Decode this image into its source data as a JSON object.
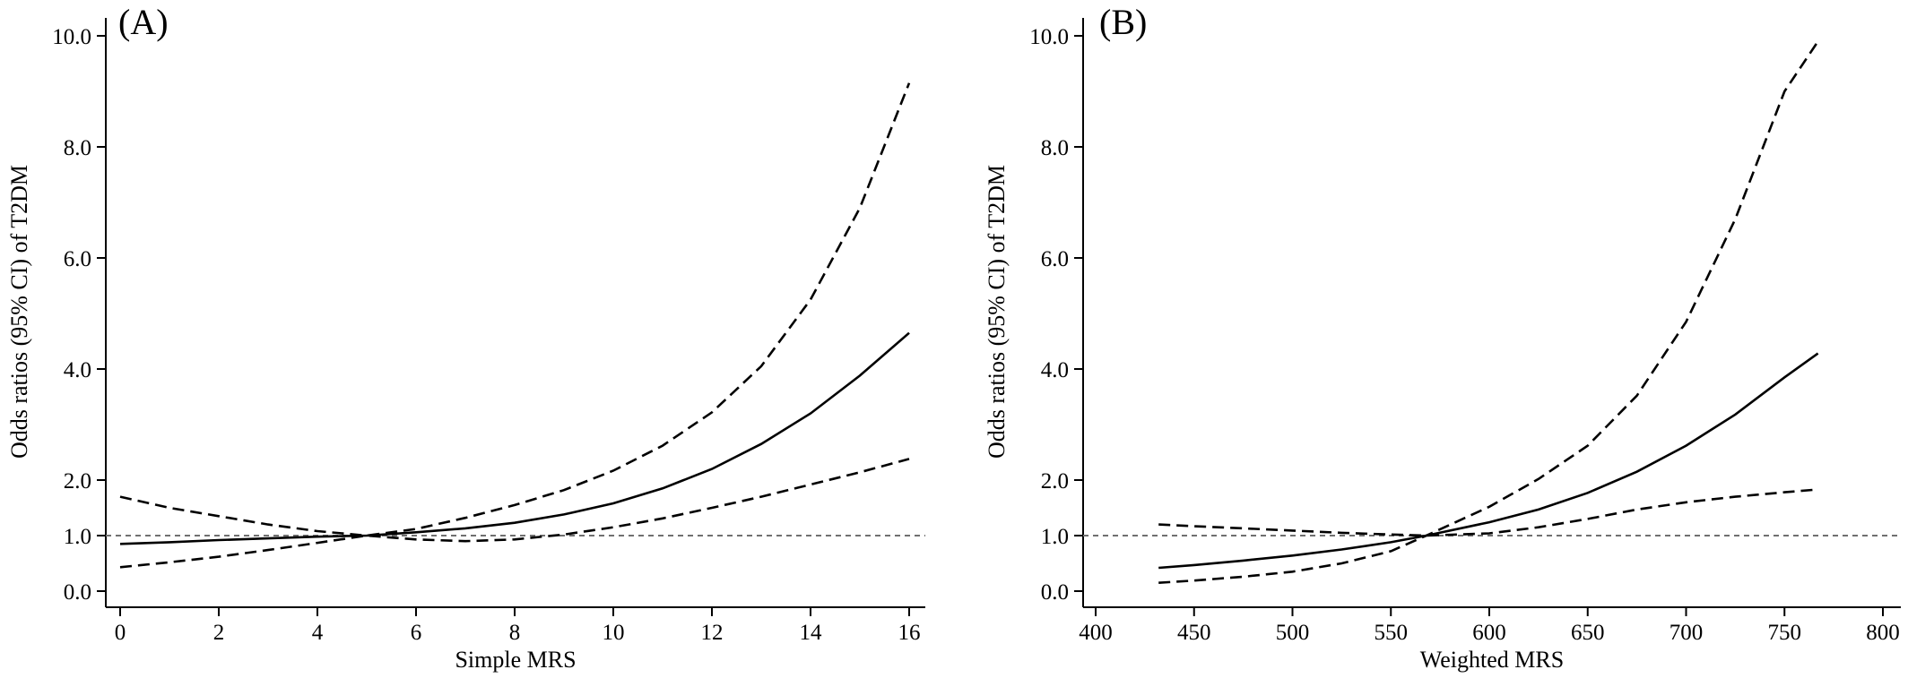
{
  "chart_data": [
    {
      "type": "line",
      "panel_label": "(A)",
      "xlabel": "Simple MRS",
      "ylabel": "Odds ratios (95% CI) of T2DM",
      "xlim": [
        -0.3,
        16.3
      ],
      "ylim": [
        -0.25,
        10.3
      ],
      "xticks": [
        0,
        2,
        4,
        6,
        8,
        10,
        12,
        14,
        16
      ],
      "xtick_labels": [
        "0",
        "2",
        "4",
        "6",
        "8",
        "10",
        "12",
        "14",
        "16"
      ],
      "yticks": [
        0,
        1,
        2,
        4,
        6,
        8,
        10
      ],
      "ytick_labels": [
        "0.0",
        "1.0",
        "2.0",
        "4.0",
        "6.0",
        "8.0",
        "10.0"
      ],
      "reference_line": 1.0,
      "series": [
        {
          "style": "solid",
          "x": [
            0,
            1,
            2,
            3,
            4,
            5,
            6,
            7,
            8,
            9,
            10,
            11,
            12,
            13,
            14,
            15,
            16
          ],
          "y": [
            0.85,
            0.88,
            0.92,
            0.95,
            0.98,
            1.0,
            1.06,
            1.13,
            1.23,
            1.38,
            1.58,
            1.85,
            2.2,
            2.65,
            3.2,
            3.88,
            4.65
          ]
        },
        {
          "style": "dashed",
          "x": [
            0,
            1,
            2,
            3,
            4,
            5,
            6,
            7,
            8,
            9,
            10,
            11,
            12,
            13,
            14,
            15,
            16
          ],
          "y": [
            1.7,
            1.5,
            1.35,
            1.2,
            1.08,
            1.0,
            1.12,
            1.32,
            1.55,
            1.82,
            2.17,
            2.62,
            3.22,
            4.05,
            5.25,
            6.9,
            9.15
          ]
        },
        {
          "style": "dashed",
          "x": [
            0,
            1,
            2,
            3,
            4,
            5,
            6,
            7,
            8,
            9,
            10,
            11,
            12,
            13,
            14,
            15,
            16
          ],
          "y": [
            0.43,
            0.52,
            0.62,
            0.74,
            0.87,
            1.0,
            0.93,
            0.9,
            0.93,
            1.02,
            1.15,
            1.31,
            1.5,
            1.7,
            1.92,
            2.14,
            2.38
          ]
        }
      ]
    },
    {
      "type": "line",
      "panel_label": "(B)",
      "xlabel": "Weighted MRS",
      "ylabel": "Odds ratios (95% CI) of T2DM",
      "xlim": [
        390,
        812
      ],
      "ylim": [
        -0.25,
        10.3
      ],
      "xticks": [
        400,
        450,
        500,
        550,
        600,
        650,
        700,
        750,
        800
      ],
      "xtick_labels": [
        "400",
        "450",
        "500",
        "550",
        "600",
        "650",
        "700",
        "750",
        "800"
      ],
      "yticks": [
        0,
        1,
        2,
        4,
        6,
        8,
        10
      ],
      "ytick_labels": [
        "0.0",
        "1.0",
        "2.0",
        "4.0",
        "6.0",
        "8.0",
        "10.0"
      ],
      "reference_line": 1.0,
      "series": [
        {
          "style": "solid",
          "x": [
            432,
            450,
            475,
            500,
            525,
            550,
            568,
            600,
            625,
            650,
            675,
            700,
            725,
            750,
            767
          ],
          "y": [
            0.42,
            0.47,
            0.55,
            0.64,
            0.75,
            0.88,
            1.0,
            1.24,
            1.47,
            1.77,
            2.15,
            2.62,
            3.18,
            3.85,
            4.28
          ]
        },
        {
          "style": "dashed",
          "x": [
            432,
            450,
            475,
            500,
            525,
            550,
            568,
            600,
            625,
            650,
            675,
            700,
            725,
            750,
            767
          ],
          "y": [
            0.15,
            0.19,
            0.26,
            0.35,
            0.5,
            0.72,
            1.0,
            1.52,
            2.02,
            2.62,
            3.52,
            4.85,
            6.7,
            9.0,
            9.9
          ]
        },
        {
          "style": "dashed",
          "x": [
            432,
            450,
            475,
            500,
            525,
            550,
            568,
            600,
            625,
            650,
            675,
            700,
            725,
            750,
            767
          ],
          "y": [
            1.2,
            1.17,
            1.13,
            1.09,
            1.05,
            1.02,
            1.0,
            1.04,
            1.15,
            1.3,
            1.47,
            1.6,
            1.7,
            1.78,
            1.83
          ]
        }
      ]
    }
  ]
}
